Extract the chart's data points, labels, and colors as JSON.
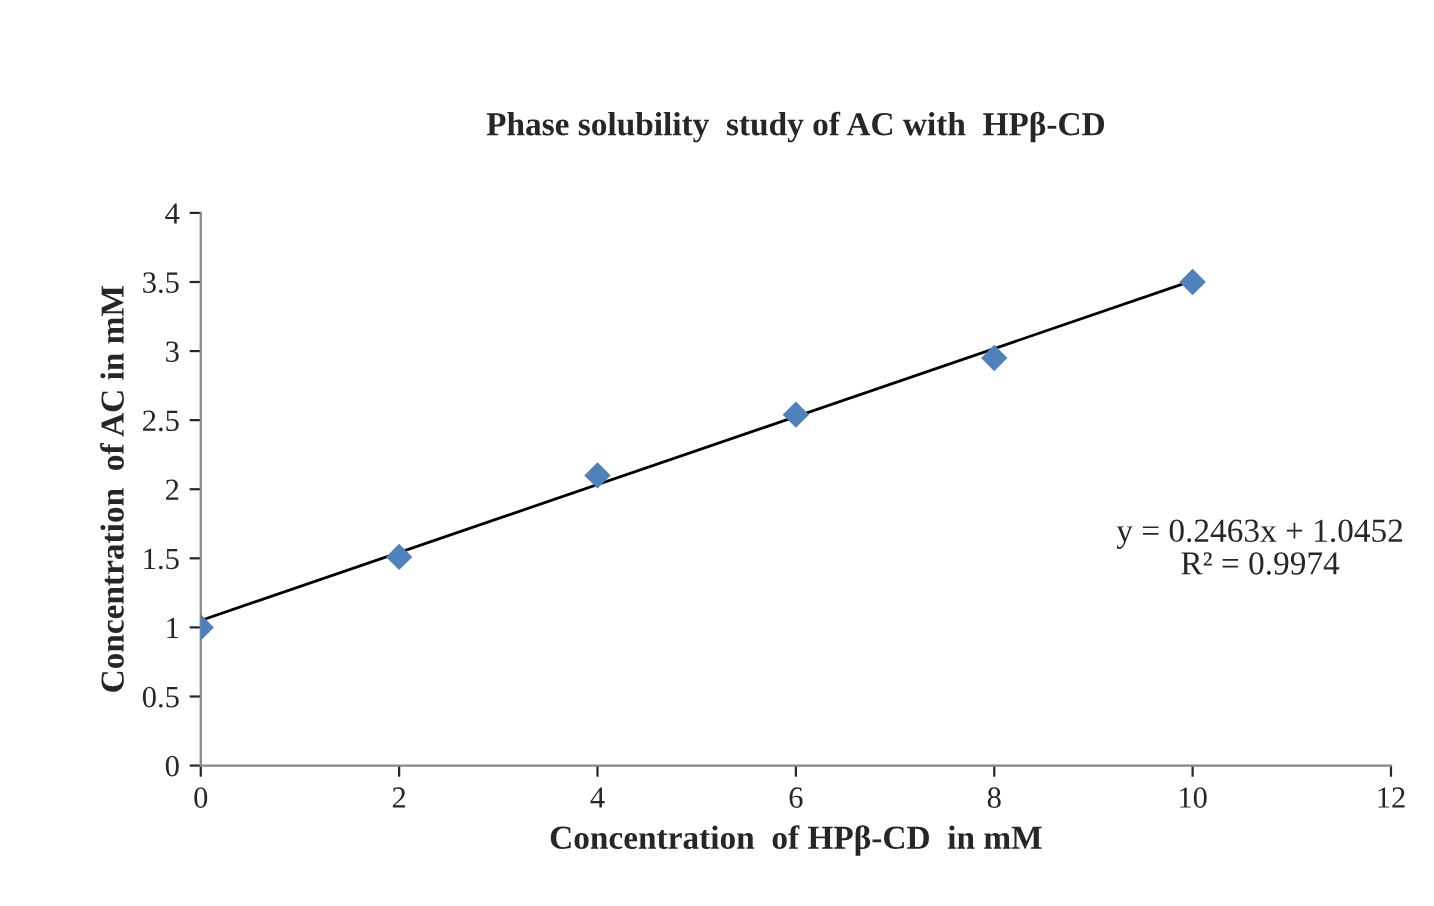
{
  "chart_data": {
    "type": "scatter",
    "title": "Phase solubility  study of AC with  HPβ-CD",
    "xlabel": "Concentration  of HPβ-CD  in mM",
    "ylabel": "Concentration  of AC in mM",
    "series": [
      {
        "color": "#4f81bd",
        "marker": "diamond",
        "x": [
          0,
          2,
          4,
          6,
          8,
          10
        ],
        "values": [
          1.0,
          1.51,
          2.1,
          2.54,
          2.95,
          3.5
        ]
      },
      {
        "type": "line",
        "color": "#000000",
        "marker": "none",
        "line_style": "solid",
        "x": [
          0,
          10
        ],
        "values": [
          1.05,
          3.51
        ]
      }
    ],
    "annotations": [
      "y = 0.2463x + 1.0452\nR² = 0.9974"
    ],
    "xlim": [
      0,
      12
    ],
    "xticks": [
      0,
      2,
      4,
      6,
      8,
      10,
      12
    ],
    "ylim": [
      0,
      4
    ],
    "yticks": [
      0,
      0.5,
      1,
      1.5,
      2,
      2.5,
      3,
      3.5,
      4
    ],
    "grid": false,
    "legend": false
  }
}
